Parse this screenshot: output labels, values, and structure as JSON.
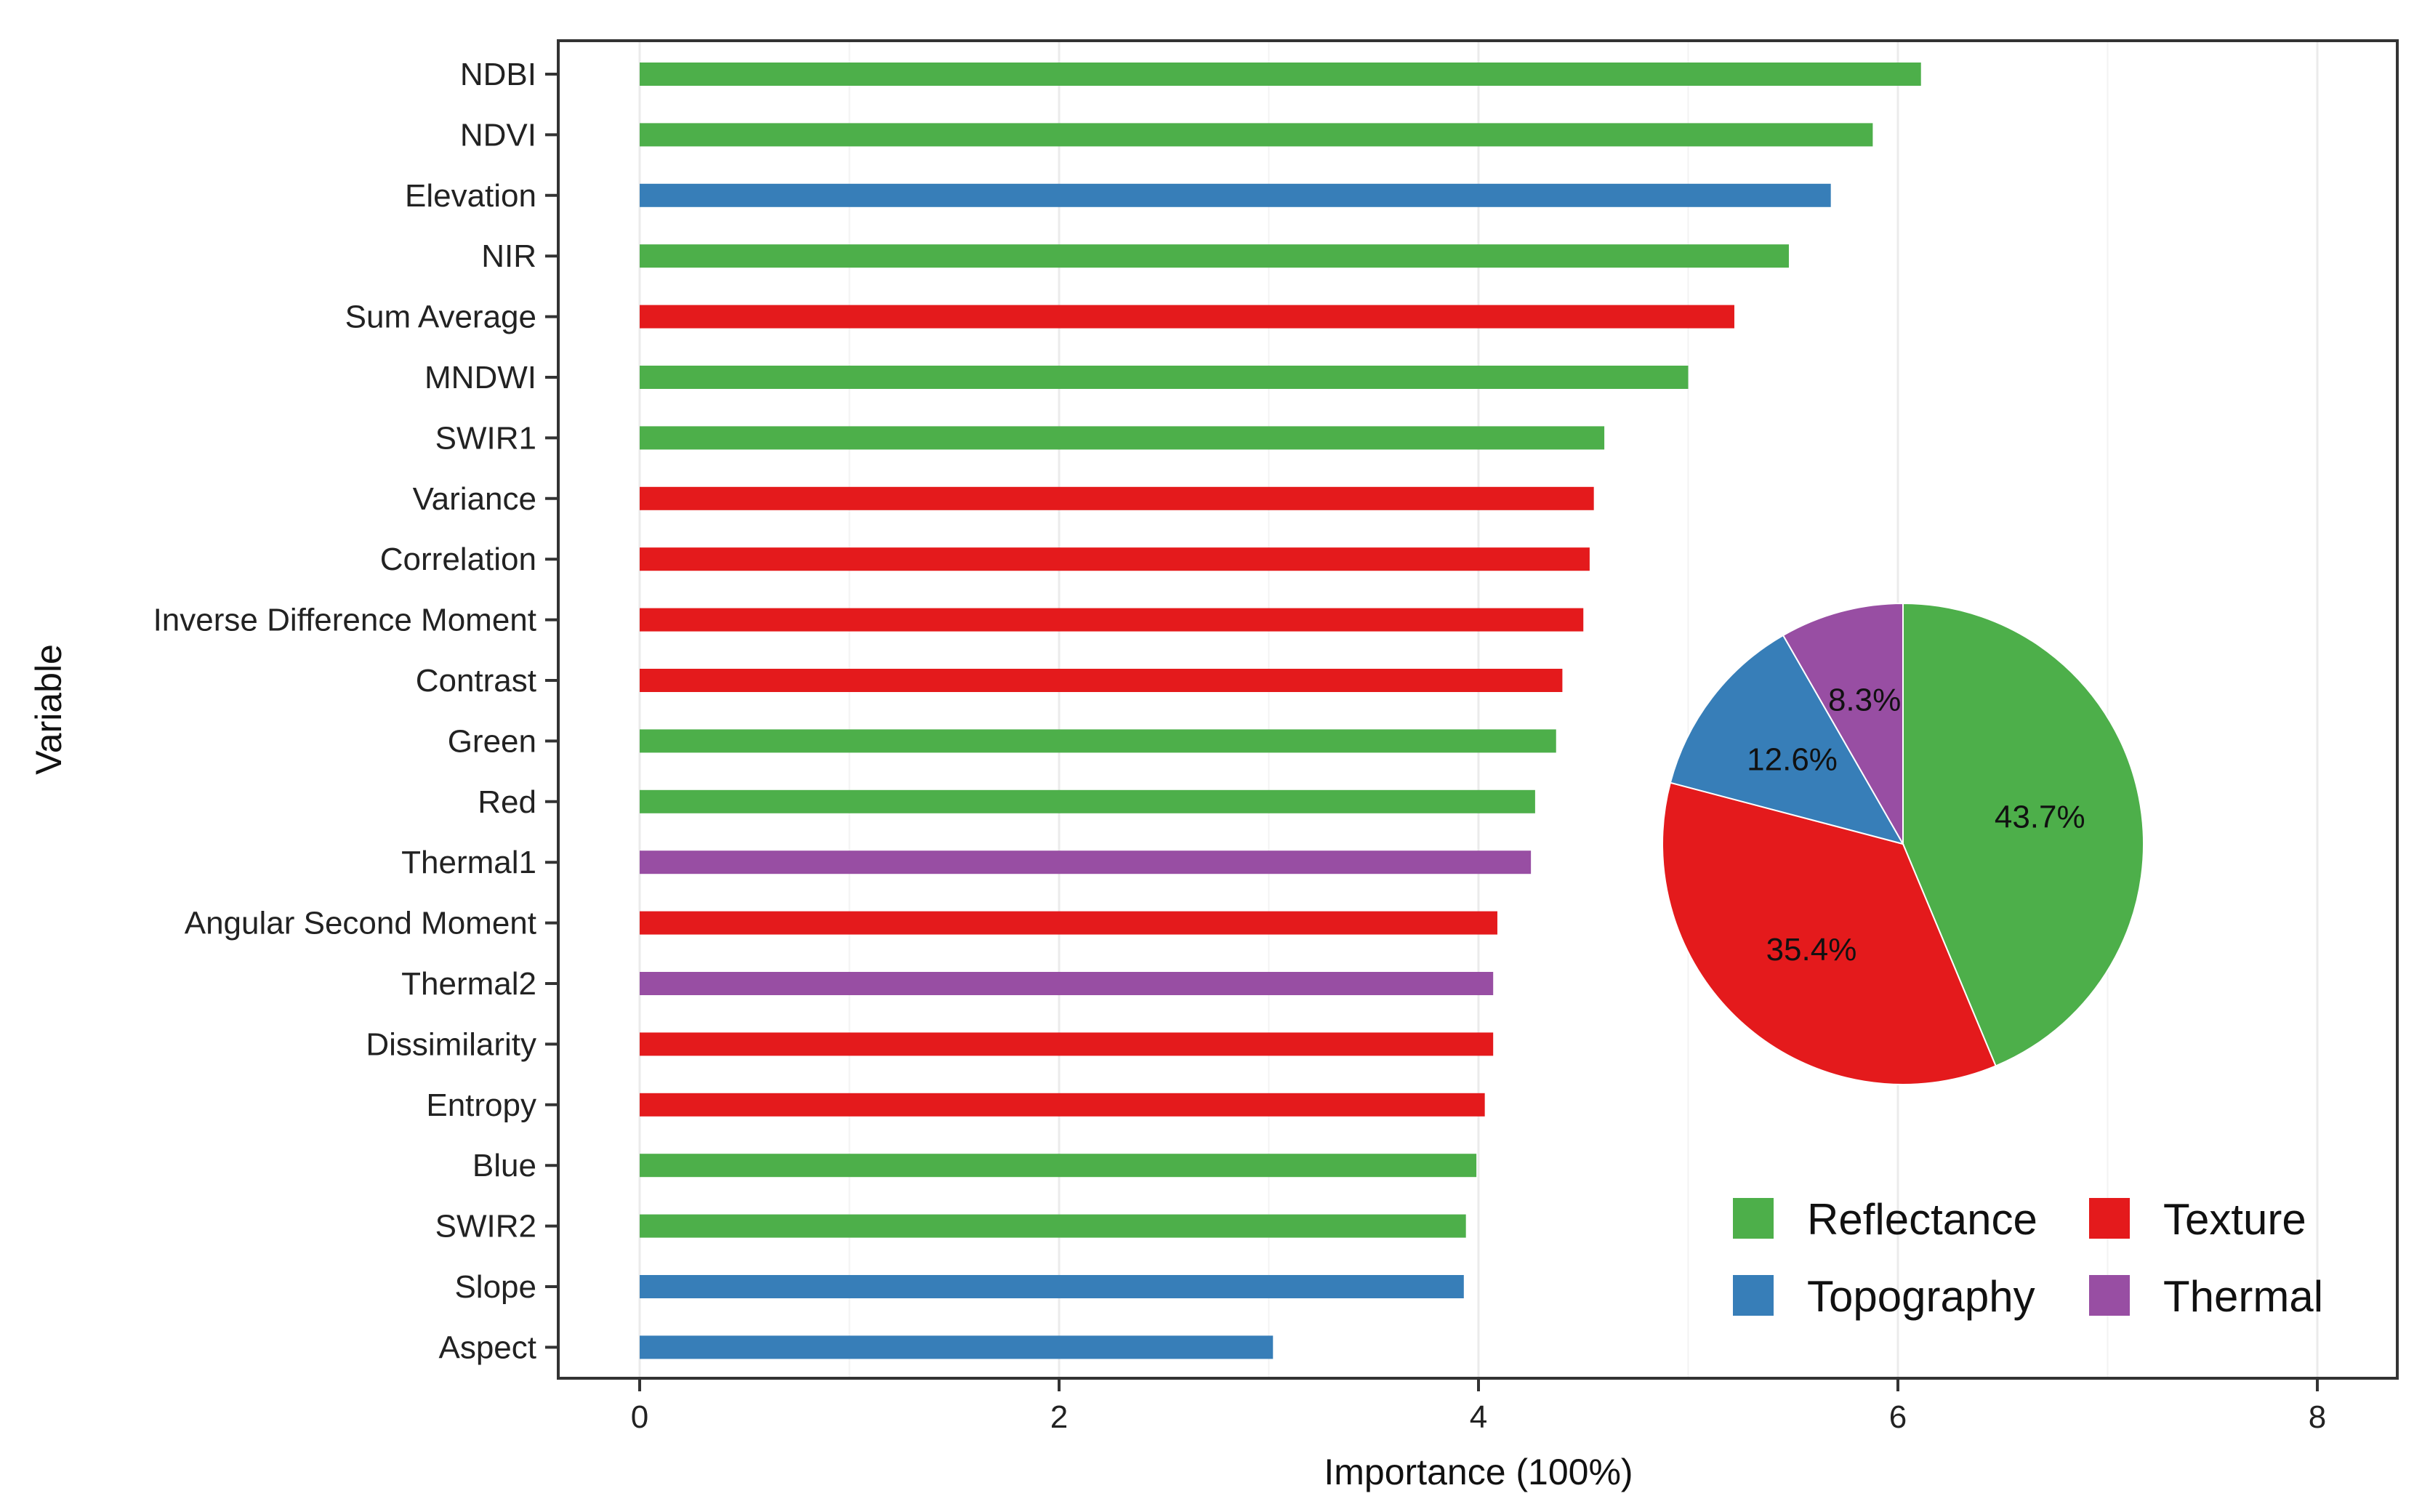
{
  "chart_data": {
    "type": "bar",
    "orientation": "horizontal",
    "xlabel": "Importance (100%)",
    "ylabel": "Variable",
    "xlim": [
      0,
      8
    ],
    "xticks": [
      "0",
      "2",
      "4",
      "6",
      "8"
    ],
    "categories": [
      "NDBI",
      "NDVI",
      "Elevation",
      "NIR",
      "Sum Average",
      "MNDWI",
      "SWIR1",
      "Variance",
      "Correlation",
      "Inverse Difference Moment",
      "Contrast",
      "Green",
      "Red",
      "Thermal1",
      "Angular Second Moment",
      "Thermal2",
      "Dissimilarity",
      "Entropy",
      "Blue",
      "SWIR2",
      "Slope",
      "Aspect"
    ],
    "values": [
      6.11,
      5.88,
      5.68,
      5.48,
      5.22,
      5.0,
      4.6,
      4.55,
      4.53,
      4.5,
      4.4,
      4.37,
      4.27,
      4.25,
      4.09,
      4.07,
      4.07,
      4.03,
      3.99,
      3.94,
      3.93,
      3.02
    ],
    "groups": [
      "Reflectance",
      "Reflectance",
      "Topography",
      "Reflectance",
      "Texture",
      "Reflectance",
      "Reflectance",
      "Texture",
      "Texture",
      "Texture",
      "Texture",
      "Reflectance",
      "Reflectance",
      "Thermal",
      "Texture",
      "Thermal",
      "Texture",
      "Texture",
      "Reflectance",
      "Reflectance",
      "Topography",
      "Topography"
    ],
    "colors": {
      "Reflectance": "#4daf4a",
      "Texture": "#e41a1c",
      "Topography": "#377eb8",
      "Thermal": "#984ea3"
    },
    "legend": {
      "position": "bottom-right",
      "entries": [
        "Reflectance",
        "Texture",
        "Topography",
        "Thermal"
      ]
    },
    "inset_pie": {
      "type": "pie",
      "slices": [
        {
          "name": "Reflectance",
          "value": 43.7,
          "label": "43.7%"
        },
        {
          "name": "Texture",
          "value": 35.4,
          "label": "35.4%"
        },
        {
          "name": "Topography",
          "value": 12.6,
          "label": "12.6%"
        },
        {
          "name": "Thermal",
          "value": 8.3,
          "label": "8.3%"
        }
      ]
    }
  }
}
